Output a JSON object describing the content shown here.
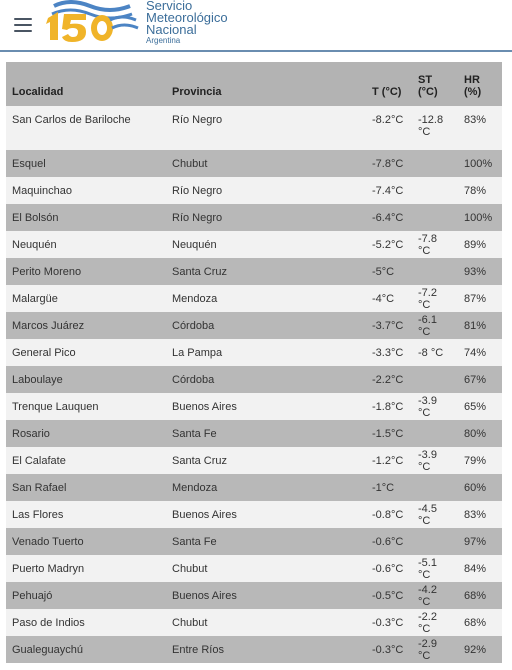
{
  "header": {
    "org_line1": "Servicio",
    "org_line2": "Meteorológico",
    "org_line3": "Nacional",
    "org_line4": "Argentina",
    "logo_text": "150"
  },
  "table": {
    "headers": {
      "localidad": "Localidad",
      "provincia": "Provincia",
      "t": "T (°C)",
      "st": "ST (°C)",
      "hr": "HR (%)"
    },
    "rows": [
      {
        "localidad": "San Carlos de Bariloche",
        "provincia": "Río Negro",
        "t": "-8.2°C",
        "st": "-12.8 °C",
        "hr": "83%"
      },
      {
        "localidad": "Esquel",
        "provincia": "Chubut",
        "t": "-7.8°C",
        "st": "",
        "hr": "100%"
      },
      {
        "localidad": "Maquinchao",
        "provincia": "Río Negro",
        "t": "-7.4°C",
        "st": "",
        "hr": "78%"
      },
      {
        "localidad": "El Bolsón",
        "provincia": "Río Negro",
        "t": "-6.4°C",
        "st": "",
        "hr": "100%"
      },
      {
        "localidad": "Neuquén",
        "provincia": "Neuquén",
        "t": "-5.2°C",
        "st": "-7.8 °C",
        "hr": "89%"
      },
      {
        "localidad": "Perito Moreno",
        "provincia": "Santa Cruz",
        "t": "-5°C",
        "st": "",
        "hr": "93%"
      },
      {
        "localidad": "Malargüe",
        "provincia": "Mendoza",
        "t": "-4°C",
        "st": "-7.2 °C",
        "hr": "87%"
      },
      {
        "localidad": "Marcos Juárez",
        "provincia": "Córdoba",
        "t": "-3.7°C",
        "st": "-6.1 °C",
        "hr": "81%"
      },
      {
        "localidad": "General Pico",
        "provincia": "La Pampa",
        "t": "-3.3°C",
        "st": "-8 °C",
        "hr": "74%"
      },
      {
        "localidad": "Laboulaye",
        "provincia": "Córdoba",
        "t": "-2.2°C",
        "st": "",
        "hr": "67%"
      },
      {
        "localidad": "Trenque Lauquen",
        "provincia": "Buenos Aires",
        "t": "-1.8°C",
        "st": "-3.9 °C",
        "hr": "65%"
      },
      {
        "localidad": "Rosario",
        "provincia": "Santa Fe",
        "t": "-1.5°C",
        "st": "",
        "hr": "80%"
      },
      {
        "localidad": "El Calafate",
        "provincia": "Santa Cruz",
        "t": "-1.2°C",
        "st": "-3.9 °C",
        "hr": "79%"
      },
      {
        "localidad": "San Rafael",
        "provincia": "Mendoza",
        "t": "-1°C",
        "st": "",
        "hr": "60%"
      },
      {
        "localidad": "Las Flores",
        "provincia": "Buenos Aires",
        "t": "-0.8°C",
        "st": "-4.5 °C",
        "hr": "83%"
      },
      {
        "localidad": "Venado Tuerto",
        "provincia": "Santa Fe",
        "t": "-0.6°C",
        "st": "",
        "hr": "97%"
      },
      {
        "localidad": "Puerto Madryn",
        "provincia": "Chubut",
        "t": "-0.6°C",
        "st": "-5.1 °C",
        "hr": "84%"
      },
      {
        "localidad": "Pehuajó",
        "provincia": "Buenos Aires",
        "t": "-0.5°C",
        "st": "-4.2 °C",
        "hr": "68%"
      },
      {
        "localidad": "Paso de Indios",
        "provincia": "Chubut",
        "t": "-0.3°C",
        "st": "-2.2 °C",
        "hr": "68%"
      },
      {
        "localidad": "Gualeguaychú",
        "provincia": "Entre Ríos",
        "t": "-0.3°C",
        "st": "-2.9 °C",
        "hr": "92%"
      }
    ]
  },
  "colors": {
    "brand_blue": "#3c6e9a",
    "logo_gold": "#f0b429",
    "header_row": "#b3b3b3",
    "row_light": "#f2f2f2",
    "row_dark": "#b8b8b8"
  }
}
